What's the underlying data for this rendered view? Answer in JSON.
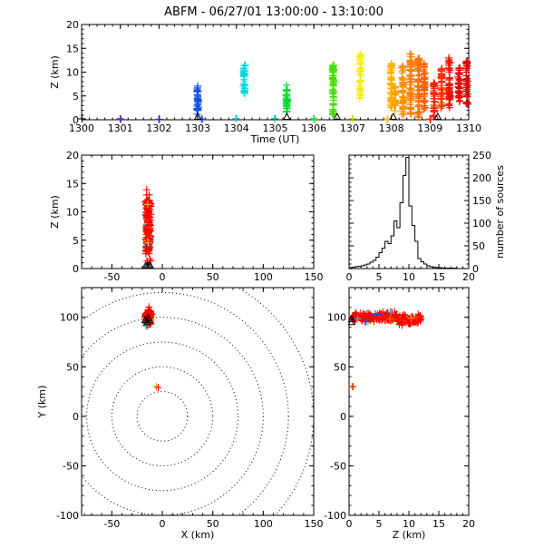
{
  "title": "ABFM - 06/27/01 13:00:00 - 13:10:00",
  "chart_data": [
    {
      "id": "time-height",
      "type": "scatter",
      "xlabel": "Time (UT)",
      "ylabel": "Z (km)",
      "xlim": [
        1300,
        1310
      ],
      "ylim": [
        0,
        20
      ],
      "xticks": [
        "1300",
        "1301",
        "1302",
        "1303",
        "1304",
        "1305",
        "1306",
        "1307",
        "1308",
        "1309",
        "1310"
      ],
      "yticks": [
        "0",
        "5",
        "10",
        "15",
        "20"
      ],
      "marker": "+",
      "clusters": [
        {
          "t": 1300.0,
          "zmin": 0,
          "zmax": 0.3,
          "color": "#300040"
        },
        {
          "t": 1301.0,
          "zmin": 0,
          "zmax": 0.3,
          "color": "#6a1ea8"
        },
        {
          "t": 1302.0,
          "zmin": 0,
          "zmax": 0.3,
          "color": "#4020b0"
        },
        {
          "t": 1303.0,
          "zmin": 0.5,
          "zmax": 7.2,
          "color": "#1450e6"
        },
        {
          "t": 1303.1,
          "zmin": 0,
          "zmax": 0.3,
          "color": "#1450e6"
        },
        {
          "t": 1304.0,
          "zmin": 0,
          "zmax": 0.3,
          "color": "#00d0e0"
        },
        {
          "t": 1304.2,
          "zmin": 5.5,
          "zmax": 11.5,
          "color": "#00d8e8"
        },
        {
          "t": 1305.0,
          "zmin": 0,
          "zmax": 0.3,
          "color": "#00d090"
        },
        {
          "t": 1305.3,
          "zmin": 1.5,
          "zmax": 7.5,
          "color": "#00d830"
        },
        {
          "t": 1306.0,
          "zmin": 0,
          "zmax": 0.3,
          "color": "#20e020"
        },
        {
          "t": 1306.5,
          "zmin": 1.0,
          "zmax": 11.5,
          "color": "#40e000"
        },
        {
          "t": 1307.0,
          "zmin": 0,
          "zmax": 0.3,
          "color": "#c0e000"
        },
        {
          "t": 1307.2,
          "zmin": 4.5,
          "zmax": 14.0,
          "color": "#f0f000"
        },
        {
          "t": 1307.9,
          "zmin": 0,
          "zmax": 0.3,
          "color": "#ffc000"
        },
        {
          "t": 1308.0,
          "zmin": 2.5,
          "zmax": 12.0,
          "color": "#ffb000"
        },
        {
          "t": 1308.1,
          "zmin": 1.5,
          "zmax": 7.0,
          "color": "#ffa000"
        },
        {
          "t": 1308.3,
          "zmin": 1.0,
          "zmax": 11.5,
          "color": "#ff9000"
        },
        {
          "t": 1308.5,
          "zmin": 1.0,
          "zmax": 14.0,
          "color": "#ff8000"
        },
        {
          "t": 1308.7,
          "zmin": 0.5,
          "zmax": 13.0,
          "color": "#ff7000"
        },
        {
          "t": 1308.85,
          "zmin": 1.5,
          "zmax": 12.0,
          "color": "#ff6000"
        },
        {
          "t": 1309.0,
          "zmin": 0,
          "zmax": 0.3,
          "color": "#ff3000"
        },
        {
          "t": 1309.1,
          "zmin": 0.5,
          "zmax": 8.0,
          "color": "#ff2000"
        },
        {
          "t": 1309.3,
          "zmin": 2.0,
          "zmax": 11.0,
          "color": "#ff3000"
        },
        {
          "t": 1309.5,
          "zmin": 2.5,
          "zmax": 13.0,
          "color": "#f01000"
        },
        {
          "t": 1309.75,
          "zmin": 3.5,
          "zmax": 11.0,
          "color": "#e80000"
        },
        {
          "t": 1309.95,
          "zmin": 3.0,
          "zmax": 12.5,
          "color": "#e00000"
        }
      ],
      "markers_triangle": [
        1303.0,
        1305.3,
        1306.6,
        1308.05,
        1309.2
      ]
    },
    {
      "id": "xz",
      "type": "scatter",
      "xlabel": "",
      "ylabel": "Z (km)",
      "xlim": [
        -80,
        150
      ],
      "ylim": [
        0,
        20
      ],
      "xticks": [
        "-50",
        "0",
        "50",
        "100",
        "150"
      ],
      "yticks": [
        "0",
        "5",
        "10",
        "15",
        "20"
      ],
      "cluster": {
        "x": -14,
        "xspread": 4,
        "zmin": 0.5,
        "zmax": 15
      },
      "triangles_x": [
        -16.5,
        -15,
        -13.5,
        -12
      ]
    },
    {
      "id": "histogram",
      "type": "bar",
      "xlabel": "",
      "ylabel": "number of sources",
      "xlim": [
        0,
        20
      ],
      "ylim": [
        0,
        250
      ],
      "xticks": [
        "0",
        "5",
        "10",
        "15",
        "20"
      ],
      "yticks": [
        "0",
        "50",
        "100",
        "150",
        "200",
        "250"
      ],
      "bin_width": 0.5,
      "bin_start": 0,
      "values": [
        2,
        3,
        4,
        5,
        6,
        8,
        10,
        14,
        18,
        25,
        35,
        45,
        60,
        55,
        72,
        105,
        90,
        145,
        205,
        245,
        138,
        95,
        60,
        22,
        15,
        10,
        6,
        4,
        3,
        2,
        2,
        1,
        1,
        1,
        1,
        1,
        0,
        0,
        0,
        0
      ]
    },
    {
      "id": "xy",
      "type": "scatter",
      "xlabel": "X (km)",
      "ylabel": "Y (km)",
      "xlim": [
        -80,
        150
      ],
      "ylim": [
        -100,
        130
      ],
      "xticks": [
        "-50",
        "0",
        "50",
        "100",
        "150"
      ],
      "yticks": [
        "-100",
        "-50",
        "0",
        "50",
        "100"
      ],
      "range_rings_km": [
        25,
        50,
        75,
        100,
        125,
        150
      ],
      "cluster": {
        "x": -14,
        "y": 100,
        "xspread": 4,
        "yspread": 12
      },
      "outlier": {
        "x": -5,
        "y": 30
      },
      "triangles": [
        [
          -17,
          97
        ],
        [
          -15,
          95
        ],
        [
          -13,
          97
        ],
        [
          -14,
          99
        ]
      ]
    },
    {
      "id": "zy",
      "type": "scatter",
      "xlabel": "Z (km)",
      "ylabel": "",
      "xlim": [
        0,
        20
      ],
      "ylim": [
        -100,
        130
      ],
      "xticks": [
        "0",
        "5",
        "10",
        "15",
        "20"
      ],
      "yticks": [
        "-100",
        "-50",
        "0",
        "50",
        "100"
      ],
      "cluster": {
        "zmin": 0.5,
        "zmax": 12,
        "y": 100,
        "yspread": 8
      },
      "outlier": {
        "z": 0.5,
        "y": 30
      },
      "triangles_y": [
        95,
        98
      ]
    }
  ]
}
